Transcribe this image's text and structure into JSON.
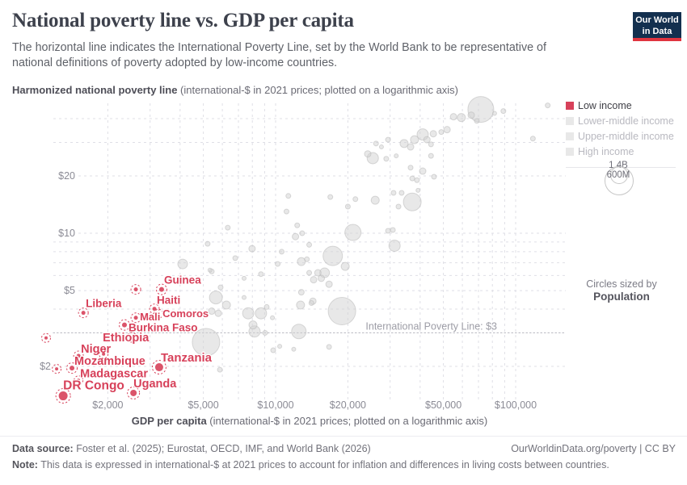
{
  "header": {
    "title": "National poverty line vs. GDP per capita",
    "subtitle": "The horizontal line indicates the International Poverty Line, set by the World Bank to be representative of national definitions of poverty adopted by low-income countries.",
    "logo": {
      "line1": "Our World",
      "line2": "in Data"
    }
  },
  "y_axis_title": {
    "bold": "Harmonized national poverty line",
    "rest": " (international-$ in 2021 prices; plotted on a logarithmic axis)"
  },
  "x_axis_title": {
    "bold": "GDP per capita",
    "rest": " (international-$ in 2021 prices; plotted on a logarithmic axis)"
  },
  "legend": {
    "items": [
      {
        "label": "Low income",
        "color": "#d7415a",
        "active": true
      },
      {
        "label": "Lower-middle income",
        "color": "#e8e8e8",
        "active": false
      },
      {
        "label": "Upper-middle income",
        "color": "#e8e8e8",
        "active": false
      },
      {
        "label": "High income",
        "color": "#e8e8e8",
        "active": false
      }
    ],
    "size_legend": {
      "big_label": "1.4B",
      "small_label": "600M",
      "caption": "Circles sized by",
      "caption_bold": "Population"
    }
  },
  "footer": {
    "source_label": "Data source:",
    "source_text": " Foster et al. (2025); Eurostat, OECD, IMF, and World Bank (2026)",
    "rights": "OurWorldinData.org/poverty | CC BY",
    "note_label": "Note:",
    "note_text": " This data is expressed in international-$ at 2021 prices to account for inflation and differences in living costs between countries."
  },
  "chart_data": {
    "type": "scatter",
    "x_axis": {
      "scale": "log",
      "label": "GDP per capita (international-$ in 2021 prices; plotted on a logarithmic axis)",
      "range": [
        950,
        150000
      ],
      "ticks": [
        2000,
        5000,
        10000,
        20000,
        50000,
        100000
      ],
      "tick_labels": [
        "$2,000",
        "$5,000",
        "$10,000",
        "$20,000",
        "$50,000",
        "$100,000"
      ],
      "gridlines": [
        2000,
        3000,
        4000,
        5000,
        6000,
        7000,
        8000,
        9000,
        10000,
        20000,
        30000,
        40000,
        50000,
        60000,
        70000,
        80000,
        90000,
        100000
      ]
    },
    "y_axis": {
      "scale": "log",
      "label": "Harmonized national poverty line (international-$ in 2021 prices)",
      "range": [
        1.3,
        50
      ],
      "ticks": [
        2,
        5,
        10,
        20
      ],
      "tick_labels": [
        "$2",
        "$5",
        "$10",
        "$20"
      ],
      "gridlines": [
        2,
        4,
        5,
        6,
        7,
        8,
        9,
        10,
        20,
        30,
        40
      ]
    },
    "reference_line": {
      "value": 3,
      "label": "International Poverty Line: $3"
    },
    "sized_by": "Population",
    "series": [
      {
        "name": "Low income",
        "color": "#d7415a",
        "points": [
          {
            "country": "Guinea",
            "gdp": 3350,
            "line": 5.07,
            "r": 3,
            "label": {
              "dx": 3,
              "dy": -7,
              "size": 13.5
            }
          },
          {
            "country": "Liberia",
            "gdp": 1582,
            "line": 3.82,
            "r": 2.5,
            "label": {
              "dx": 3,
              "dy": -7,
              "size": 13.5
            }
          },
          {
            "country": "Haiti",
            "gdp": 3126,
            "line": 4.01,
            "r": 2.5,
            "label": {
              "dx": 3,
              "dy": -6,
              "size": 13.5
            }
          },
          {
            "country": "Comoros",
            "gdp": 3251,
            "line": 3.78,
            "r": 2,
            "label": {
              "dx": 5,
              "dy": 4,
              "size": 13
            }
          },
          {
            "country": "Mali",
            "gdp": 2617,
            "line": 3.6,
            "r": 2.5,
            "label": {
              "dx": 5,
              "dy": 3,
              "size": 13
            }
          },
          {
            "country": "Burkina Faso",
            "gdp": 2346,
            "line": 3.3,
            "r": 3,
            "label": {
              "dx": 5,
              "dy": 8,
              "size": 13.5
            }
          },
          {
            "country": "Ethiopia",
            "gdp": 2518,
            "line": 2.84,
            "r": 2.5,
            "label": {
              "dx": -36,
              "dy": 5,
              "size": 14.5
            }
          },
          {
            "country": "Niger",
            "gdp": 1510,
            "line": 2.27,
            "r": 2.5,
            "label": {
              "dx": 3,
              "dy": -4,
              "size": 14.5
            }
          },
          {
            "country": "Mozambique",
            "gdp": 1418,
            "line": 1.96,
            "r": 3,
            "label": {
              "dx": 3,
              "dy": -4,
              "size": 14.5
            }
          },
          {
            "country": "Madagascar",
            "gdp": 1510,
            "line": 1.69,
            "r": 2,
            "label": {
              "dx": 2,
              "dy": -4,
              "size": 14.5
            }
          },
          {
            "country": "DR Congo",
            "gdp": 1303,
            "line": 1.4,
            "r": 5.5,
            "label": {
              "dx": 0,
              "dy": -8,
              "size": 15.5
            }
          },
          {
            "country": "Uganda",
            "gdp": 2558,
            "line": 1.45,
            "r": 4,
            "label": {
              "dx": 0,
              "dy": -7,
              "size": 14.5
            }
          },
          {
            "country": "Tanzania",
            "gdp": 3273,
            "line": 1.98,
            "r": 5,
            "label": {
              "dx": 2,
              "dy": -7,
              "size": 15
            }
          },
          {
            "country": null,
            "gdp": 1224,
            "line": 1.94,
            "r": 2
          },
          {
            "country": null,
            "gdp": 1106,
            "line": 2.82,
            "r": 2
          },
          {
            "country": null,
            "gdp": 2617,
            "line": 5.07,
            "r": 2.5
          },
          {
            "country": null,
            "gdp": 1920,
            "line": 2.32,
            "r": 2
          }
        ]
      },
      {
        "name": "Other income groups (not highlighted)",
        "color": "#d2d2d2",
        "points_gdp_line_r": [
          [
            71600,
            44.7,
            16
          ],
          [
            59400,
            40.5,
            5
          ],
          [
            65300,
            41.7,
            4
          ],
          [
            68900,
            38.9,
            3
          ],
          [
            81700,
            42.6,
            2.5
          ],
          [
            88900,
            43.8,
            3
          ],
          [
            136000,
            46.9,
            3
          ],
          [
            118000,
            31.4,
            3
          ],
          [
            55100,
            40.9,
            4
          ],
          [
            51800,
            35,
            4
          ],
          [
            49000,
            34,
            3
          ],
          [
            45400,
            33.3,
            4
          ],
          [
            41000,
            33,
            7
          ],
          [
            42700,
            31,
            4
          ],
          [
            37900,
            31,
            5
          ],
          [
            34300,
            29.6,
            5
          ],
          [
            36500,
            28.4,
            4
          ],
          [
            44400,
            29.3,
            3
          ],
          [
            29400,
            31,
            3
          ],
          [
            26200,
            29.6,
            3
          ],
          [
            27600,
            28.4,
            2.5
          ],
          [
            24200,
            26.1,
            4
          ],
          [
            25400,
            24.8,
            7
          ],
          [
            28900,
            24.6,
            3
          ],
          [
            31800,
            25.5,
            2.5
          ],
          [
            36500,
            22.1,
            3
          ],
          [
            41000,
            21.2,
            4
          ],
          [
            44400,
            25.5,
            3
          ],
          [
            37100,
            19.4,
            3
          ],
          [
            38800,
            19,
            3
          ],
          [
            45700,
            19.8,
            3
          ],
          [
            31000,
            16.3,
            3
          ],
          [
            33500,
            16.3,
            3
          ],
          [
            39200,
            16.8,
            2.5
          ],
          [
            37100,
            14.6,
            11
          ],
          [
            26000,
            14.9,
            5
          ],
          [
            21500,
            15.1,
            3
          ],
          [
            20000,
            13.8,
            3
          ],
          [
            16900,
            15.5,
            3
          ],
          [
            32500,
            13.8,
            3
          ],
          [
            11300,
            15.7,
            3
          ],
          [
            11100,
            13,
            3
          ],
          [
            12300,
            11,
            3
          ],
          [
            6320,
            10.7,
            3
          ],
          [
            12100,
            9.6,
            4
          ],
          [
            12900,
            10,
            3
          ],
          [
            5210,
            8.8,
            3
          ],
          [
            13800,
            8.7,
            3
          ],
          [
            7980,
            8.3,
            4
          ],
          [
            10600,
            8,
            3
          ],
          [
            6790,
            7.4,
            3
          ],
          [
            4100,
            6.9,
            6
          ],
          [
            10200,
            6.9,
            3
          ],
          [
            12800,
            7.1,
            5
          ],
          [
            13500,
            7.3,
            3
          ],
          [
            5420,
            6.3,
            3
          ],
          [
            21000,
            10.1,
            10
          ],
          [
            29400,
            10.3,
            3
          ],
          [
            30800,
            10.4,
            3
          ],
          [
            31300,
            8.6,
            7
          ],
          [
            17300,
            7.6,
            12
          ],
          [
            19500,
            6.7,
            5
          ],
          [
            15000,
            6.2,
            4
          ],
          [
            16000,
            6.2,
            6
          ],
          [
            14400,
            5.7,
            4
          ],
          [
            13800,
            6.2,
            3
          ],
          [
            15500,
            5.8,
            4
          ],
          [
            16700,
            5.4,
            4
          ],
          [
            7390,
            5.8,
            2.5
          ],
          [
            8690,
            6.1,
            3
          ],
          [
            5330,
            6.4,
            2.5
          ],
          [
            5900,
            5.2,
            3
          ],
          [
            12800,
            4.9,
            3.5
          ],
          [
            14100,
            4.3,
            3
          ],
          [
            12700,
            4.2,
            5
          ],
          [
            14300,
            4.4,
            4
          ],
          [
            9180,
            4.1,
            3
          ],
          [
            7690,
            3.8,
            7
          ],
          [
            8690,
            3.8,
            7
          ],
          [
            6240,
            4.2,
            5
          ],
          [
            5640,
            4.6,
            8
          ],
          [
            5420,
            3.9,
            4
          ],
          [
            5770,
            3.8,
            4
          ],
          [
            9700,
            3.6,
            2.5
          ],
          [
            7390,
            4.6,
            2.5
          ],
          [
            18900,
            3.9,
            17
          ],
          [
            12500,
            3.05,
            9
          ],
          [
            8050,
            3.3,
            5
          ],
          [
            8170,
            3.05,
            7
          ],
          [
            9040,
            3,
            3
          ],
          [
            5130,
            2.68,
            17
          ],
          [
            10400,
            2.55,
            2.5
          ],
          [
            11900,
            2.46,
            2.5
          ],
          [
            9770,
            2.43,
            3
          ],
          [
            16700,
            2.53,
            3
          ],
          [
            5860,
            1.92,
            3
          ]
        ]
      }
    ]
  }
}
